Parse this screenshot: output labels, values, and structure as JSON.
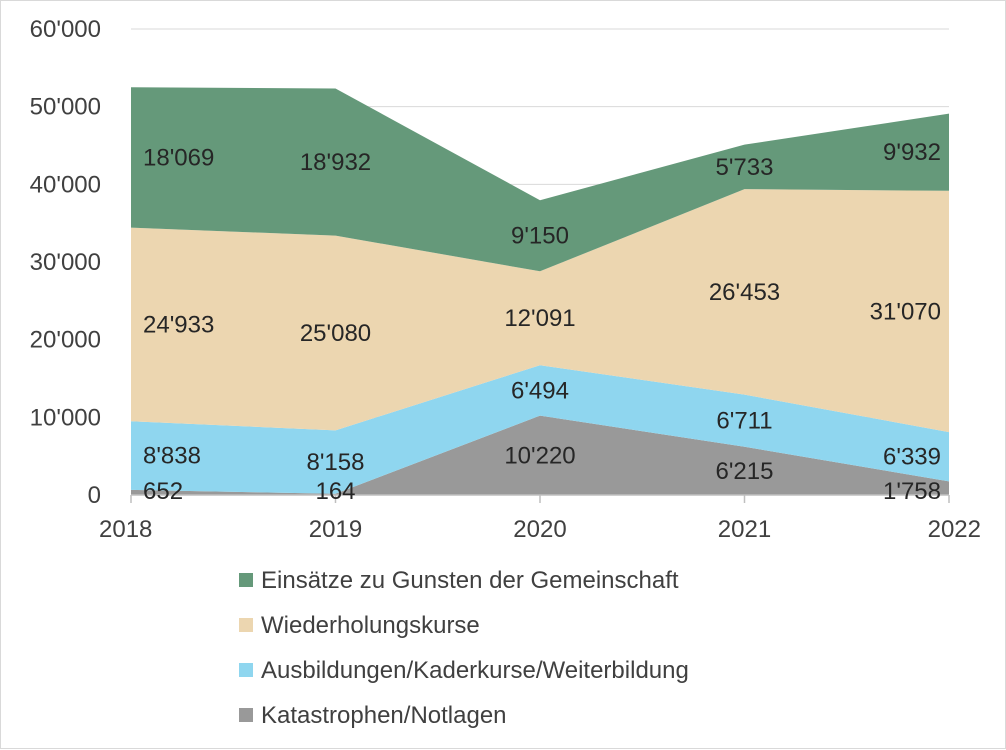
{
  "chart_data": {
    "type": "area",
    "stacked": true,
    "x": [
      "2018",
      "2019",
      "2020",
      "2021",
      "2022"
    ],
    "ylim": [
      0,
      60000
    ],
    "y_ticks": [
      0,
      10000,
      20000,
      30000,
      40000,
      50000,
      60000
    ],
    "y_tick_labels": [
      "0",
      "10'000",
      "20'000",
      "30'000",
      "40'000",
      "50'000",
      "60'000"
    ],
    "grid": true,
    "legend_position": "bottom",
    "series": [
      {
        "name": "Katastrophen/Notlagen",
        "color": "#999999",
        "values": [
          652,
          164,
          10220,
          6215,
          1758
        ],
        "labels": [
          "652",
          "164",
          "10'220",
          "6'215",
          "1'758"
        ]
      },
      {
        "name": "Ausbildungen/Kaderkurse/Weiterbildung",
        "color": "#8fd6ef",
        "values": [
          8838,
          8158,
          6494,
          6711,
          6339
        ],
        "labels": [
          "8'838",
          "8'158",
          "6'494",
          "6'711",
          "6'339"
        ]
      },
      {
        "name": "Wiederholungskurse",
        "color": "#ecd6b0",
        "values": [
          24933,
          25080,
          12091,
          26453,
          31070
        ],
        "labels": [
          "24'933",
          "25'080",
          "12'091",
          "26'453",
          "31'070"
        ]
      },
      {
        "name": "Einsätze zu Gunsten der Gemeinschaft",
        "color": "#65997a",
        "values": [
          18069,
          18932,
          9150,
          5733,
          9932
        ],
        "labels": [
          "18'069",
          "18'932",
          "9'150",
          "5'733",
          "9'932"
        ]
      }
    ],
    "legend_order": [
      "Einsätze zu Gunsten der Gemeinschaft",
      "Wiederholungskurse",
      "Ausbildungen/Kaderkurse/Weiterbildung",
      "Katastrophen/Notlagen"
    ]
  }
}
